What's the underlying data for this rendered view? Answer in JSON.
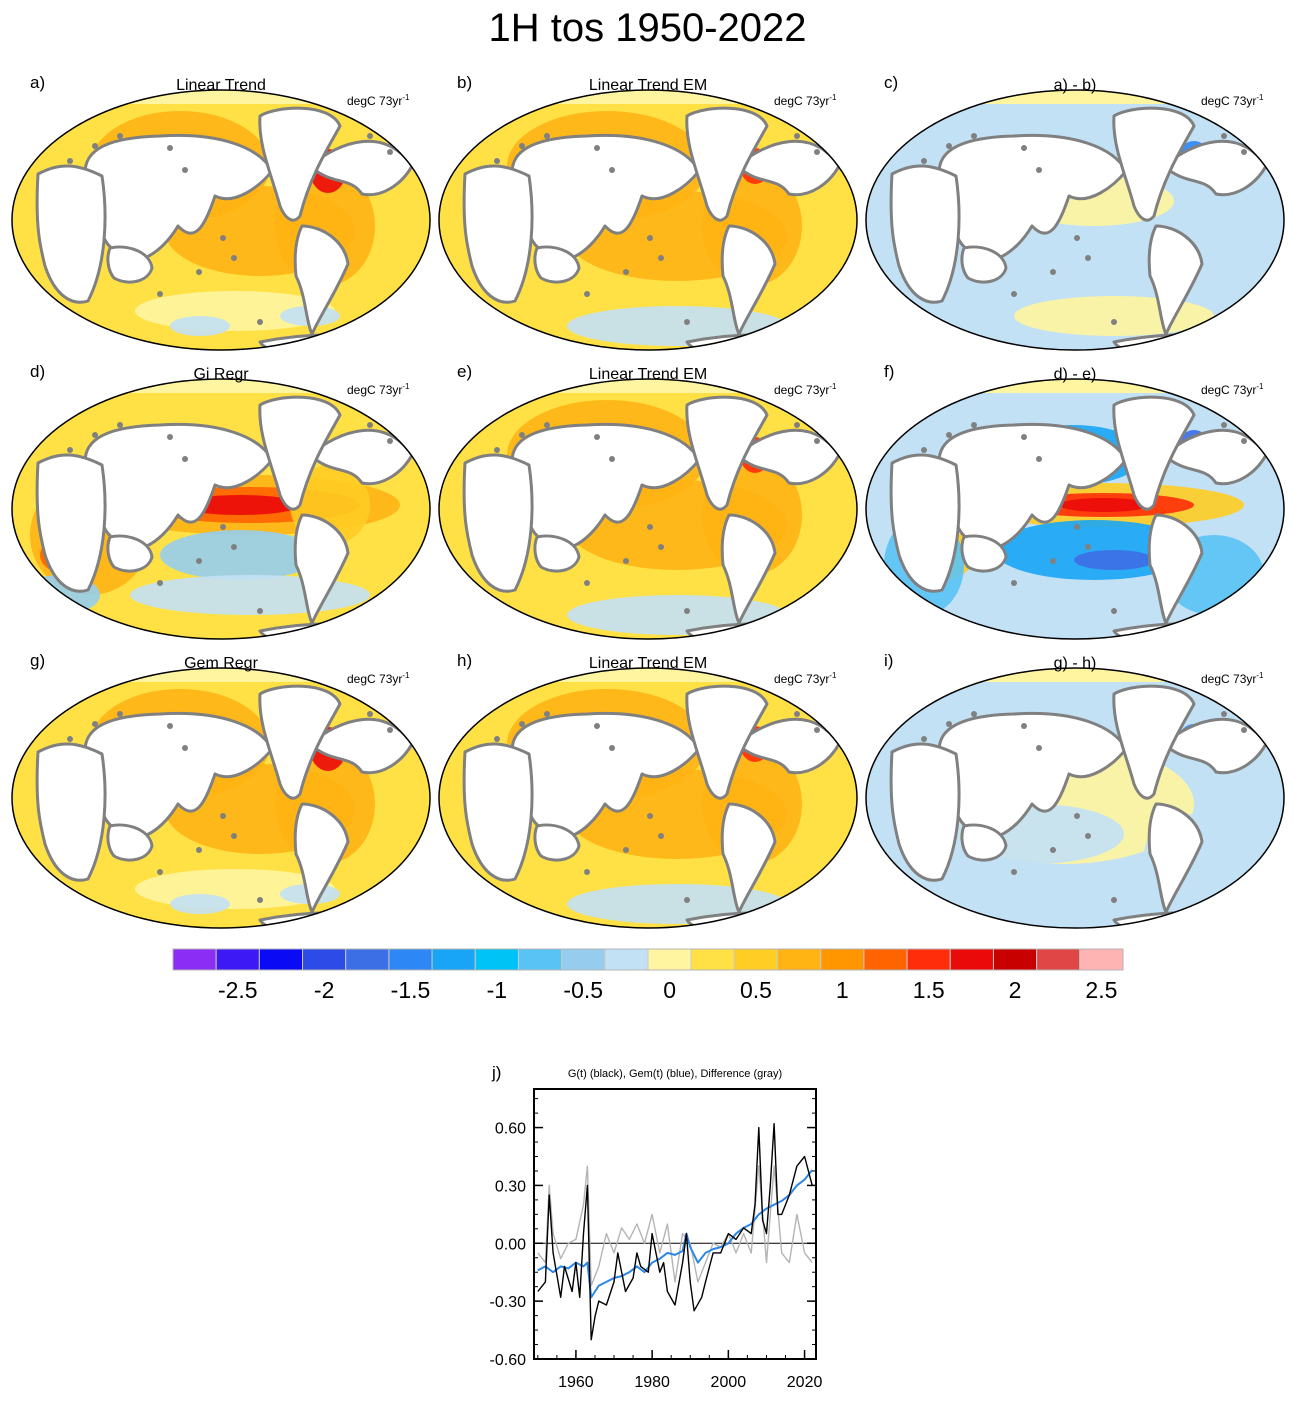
{
  "title": "1H tos 1950-2022",
  "units_label": "degC 73yr",
  "units_sup": "-1",
  "colors": {
    "land": "#ffffff",
    "coast": "#808080",
    "ocean_base": "#ffd23c"
  },
  "maps": [
    {
      "letter": "a)",
      "title": "Linear Trend"
    },
    {
      "letter": "b)",
      "title": "Linear Trend EM"
    },
    {
      "letter": "c)",
      "title": "a) - b)"
    },
    {
      "letter": "d)",
      "title": "Gi Regr"
    },
    {
      "letter": "e)",
      "title": "Linear Trend EM"
    },
    {
      "letter": "f)",
      "title": "d) - e)"
    },
    {
      "letter": "g)",
      "title": "Gem Regr"
    },
    {
      "letter": "h)",
      "title": "Linear Trend EM"
    },
    {
      "letter": "i)",
      "title": "g) - h)"
    }
  ],
  "colorbar": {
    "colors": [
      "#8c2df5",
      "#3c19f5",
      "#0a0af5",
      "#2d4be6",
      "#3c6ee6",
      "#2d87f5",
      "#19a5f5",
      "#00c3f5",
      "#5ac3f5",
      "#96cdee",
      "#c3e1f5",
      "#fff5a0",
      "#ffe146",
      "#ffcd23",
      "#ffb414",
      "#ff9600",
      "#ff6400",
      "#ff2d0a",
      "#eb0a0a",
      "#c80000",
      "#e14646",
      "#ffb4b4"
    ],
    "tick_labels": [
      "-2.5",
      "-2",
      "-1.5",
      "-1",
      "-0.5",
      "0",
      "0.5",
      "1",
      "1.5",
      "2",
      "2.5"
    ]
  },
  "chart_data": {
    "type": "line",
    "panel_label": "j)",
    "title": "G(t)  (black), Gem(t) (blue), Difference (gray)",
    "xlim": [
      1949,
      2023
    ],
    "ylim": [
      -0.6,
      0.8
    ],
    "xticks": [
      1960,
      1980,
      2000,
      2020
    ],
    "xtick_labels": [
      "1960",
      "1980",
      "2000",
      "2020"
    ],
    "yticks": [
      0.6,
      0.3,
      0.0,
      -0.3,
      -0.6
    ],
    "ytick_labels": [
      "0.60",
      "0.30",
      "0.00",
      "-0.30",
      "-0.60"
    ],
    "zero_line": 0,
    "series": [
      {
        "name": "G(t)",
        "color": "#000000",
        "x": [
          1950,
          1952,
          1953,
          1954,
          1956,
          1957,
          1959,
          1960,
          1961,
          1962,
          1963,
          1964,
          1965,
          1966,
          1968,
          1970,
          1971,
          1973,
          1975,
          1976,
          1977,
          1979,
          1980,
          1982,
          1983,
          1984,
          1986,
          1988,
          1989,
          1990,
          1991,
          1993,
          1994,
          1996,
          1998,
          2000,
          2002,
          2004,
          2006,
          2007,
          2008,
          2009,
          2010,
          2011,
          2012,
          2013,
          2014,
          2016,
          2018,
          2020,
          2022
        ],
        "y": [
          -0.25,
          -0.2,
          0.25,
          -0.05,
          -0.28,
          -0.12,
          -0.25,
          -0.1,
          -0.28,
          0.05,
          0.3,
          -0.5,
          -0.38,
          -0.3,
          -0.32,
          -0.2,
          -0.05,
          -0.25,
          -0.18,
          -0.05,
          -0.12,
          -0.15,
          0.05,
          -0.15,
          -0.1,
          -0.25,
          -0.32,
          -0.1,
          0.05,
          -0.2,
          -0.35,
          -0.28,
          -0.2,
          -0.05,
          -0.05,
          0.05,
          0.02,
          0.08,
          0.05,
          0.2,
          0.6,
          0.12,
          0.05,
          0.3,
          0.62,
          0.15,
          0.15,
          0.25,
          0.4,
          0.45,
          0.3
        ]
      },
      {
        "name": "Gem(t)",
        "color": "#2d87e6",
        "x": [
          1950,
          1952,
          1954,
          1956,
          1958,
          1960,
          1962,
          1963,
          1964,
          1965,
          1966,
          1968,
          1970,
          1972,
          1974,
          1976,
          1978,
          1980,
          1982,
          1984,
          1986,
          1988,
          1989,
          1990,
          1992,
          1994,
          1996,
          1998,
          2000,
          2002,
          2004,
          2006,
          2008,
          2010,
          2012,
          2014,
          2016,
          2018,
          2020,
          2022
        ],
        "y": [
          -0.14,
          -0.12,
          -0.15,
          -0.12,
          -0.13,
          -0.1,
          -0.12,
          -0.1,
          -0.28,
          -0.25,
          -0.22,
          -0.2,
          -0.18,
          -0.17,
          -0.15,
          -0.12,
          -0.15,
          -0.1,
          -0.08,
          -0.05,
          -0.06,
          -0.04,
          0.05,
          -0.02,
          -0.1,
          -0.05,
          -0.03,
          -0.02,
          0.0,
          0.05,
          0.08,
          0.1,
          0.15,
          0.18,
          0.2,
          0.22,
          0.25,
          0.3,
          0.33,
          0.38
        ]
      },
      {
        "name": "Difference",
        "color": "#b4b4b4",
        "x": [
          1950,
          1952,
          1953,
          1954,
          1956,
          1958,
          1960,
          1962,
          1963,
          1964,
          1966,
          1968,
          1970,
          1972,
          1974,
          1976,
          1978,
          1980,
          1982,
          1984,
          1986,
          1988,
          1990,
          1992,
          1994,
          1996,
          1998,
          2000,
          2002,
          2004,
          2006,
          2008,
          2010,
          2012,
          2014,
          2016,
          2018,
          2020,
          2022
        ],
        "y": [
          -0.05,
          -0.1,
          0.3,
          0.05,
          -0.08,
          0.0,
          0.02,
          0.2,
          0.4,
          -0.22,
          -0.12,
          0.05,
          -0.05,
          0.08,
          0.02,
          0.1,
          0.0,
          0.15,
          -0.05,
          0.1,
          -0.2,
          0.05,
          0.0,
          -0.2,
          -0.1,
          0.0,
          -0.02,
          0.05,
          -0.05,
          0.05,
          -0.05,
          0.4,
          -0.1,
          0.4,
          -0.05,
          -0.1,
          0.15,
          -0.05,
          -0.1
        ]
      }
    ]
  }
}
